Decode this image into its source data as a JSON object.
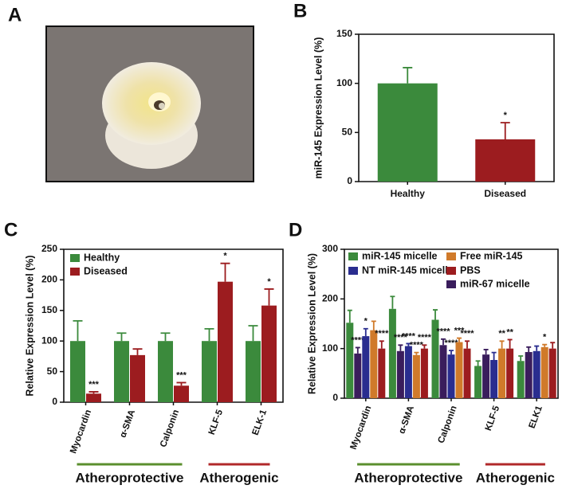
{
  "panel_labels": [
    "A",
    "B",
    "C",
    "D"
  ],
  "chart_data": [
    {
      "type": "bar",
      "ylabel": "miR-145 Expression  Level (%)",
      "categories": [
        "Healthy",
        "Diseased"
      ],
      "values": [
        100,
        43
      ],
      "errors": [
        16,
        17
      ],
      "colors": [
        "#3b8a3c",
        "#9c1c1f"
      ],
      "significance": [
        null,
        "*"
      ],
      "ylim": [
        0,
        150
      ],
      "yticks": [
        0,
        50,
        100,
        150
      ]
    },
    {
      "type": "bar",
      "ylabel": "Relative Expression Level (%)",
      "categories": [
        "Myocardin",
        "α-SMA",
        "Calponin",
        "KLF-5",
        "ELK-1"
      ],
      "series": [
        {
          "name": "Healthy",
          "color": "#3b8a3c",
          "values": [
            100,
            100,
            100,
            100,
            100
          ],
          "errors": [
            33,
            13,
            13,
            20,
            25
          ],
          "significance": [
            null,
            null,
            null,
            null,
            null
          ]
        },
        {
          "name": "Diseased",
          "color": "#9c1c1f",
          "values": [
            14,
            77,
            27,
            197,
            158
          ],
          "errors": [
            3,
            10,
            5,
            30,
            27
          ],
          "significance": [
            "***",
            null,
            "***",
            "*",
            "*"
          ]
        }
      ],
      "ylim": [
        0,
        250
      ],
      "yticks": [
        0,
        50,
        100,
        150,
        200,
        250
      ],
      "groups": [
        {
          "label": "Atheroprotective",
          "color": "#5b8f2e",
          "span": [
            0,
            2
          ]
        },
        {
          "label": "Atherogenic",
          "color": "#b0282a",
          "span": [
            3,
            4
          ]
        }
      ]
    },
    {
      "type": "bar",
      "ylabel": "Relative Expression Level (%)",
      "categories": [
        "Myocardin",
        "α-SMA",
        "Calponin",
        "KLF-5",
        "ELK1"
      ],
      "series": [
        {
          "name": "miR-145 micelle",
          "color": "#3b8a3c",
          "values": [
            152,
            180,
            158,
            65,
            75
          ],
          "errors": [
            25,
            25,
            20,
            10,
            10
          ],
          "significance": [
            null,
            null,
            null,
            null,
            null
          ]
        },
        {
          "name": "miR-67 micelle",
          "color": "#3a1d5c",
          "values": [
            90,
            95,
            107,
            88,
            93
          ],
          "errors": [
            12,
            12,
            12,
            10,
            10
          ],
          "significance": [
            "****",
            "****",
            "****",
            null,
            null
          ]
        },
        {
          "name": "NT miR-145 micelle",
          "color": "#2a2d8f",
          "values": [
            125,
            105,
            88,
            77,
            95
          ],
          "errors": [
            15,
            5,
            8,
            15,
            10
          ],
          "significance": [
            "*",
            "****",
            "****",
            null,
            null
          ]
        },
        {
          "name": "Free miR-145",
          "color": "#d07a2a",
          "values": [
            137,
            87,
            113,
            100,
            103
          ],
          "errors": [
            18,
            5,
            8,
            15,
            5
          ],
          "significance": [
            null,
            "****",
            "***",
            "**",
            "*"
          ]
        },
        {
          "name": "PBS",
          "color": "#9c1c1f",
          "values": [
            100,
            100,
            100,
            100,
            100
          ],
          "errors": [
            15,
            7,
            15,
            18,
            12
          ],
          "significance": [
            "****",
            "****",
            "****",
            "**",
            null
          ]
        }
      ],
      "ylim": [
        0,
        300
      ],
      "yticks": [
        0,
        100,
        200,
        300
      ],
      "groups": [
        {
          "label": "Atheroprotective",
          "color": "#5b8f2e",
          "span": [
            0,
            2
          ]
        },
        {
          "label": "Atherogenic",
          "color": "#b0282a",
          "span": [
            3,
            4
          ]
        }
      ]
    }
  ]
}
